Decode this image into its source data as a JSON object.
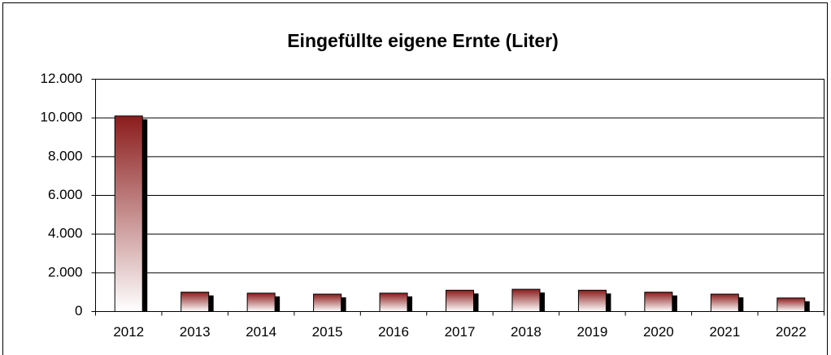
{
  "chart_data": {
    "type": "bar",
    "title": "Eingefüllte eigene Ernte (Liter)",
    "categories": [
      "2012",
      "2013",
      "2014",
      "2015",
      "2016",
      "2017",
      "2018",
      "2019",
      "2020",
      "2021",
      "2022"
    ],
    "values": [
      10100,
      1000,
      950,
      900,
      950,
      1100,
      1150,
      1100,
      1000,
      900,
      700
    ],
    "color": "#8b1c1c",
    "ylim": [
      0,
      12000
    ],
    "yticks": [
      0,
      {
        "value": 2000,
        "label": "2.000"
      },
      {
        "value": 4000,
        "label": "4.000"
      },
      {
        "value": 6000,
        "label": "6.000"
      },
      {
        "value": 8000,
        "label": "8.000"
      },
      {
        "value": 10000,
        "label": "10.000"
      },
      {
        "value": 12000,
        "label": "12.000"
      }
    ],
    "grid": true
  }
}
